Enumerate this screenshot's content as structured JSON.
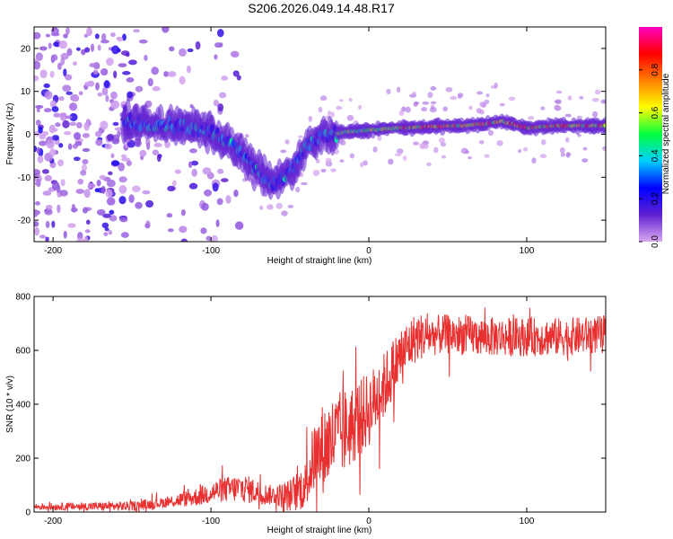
{
  "title": "S206.2026.049.14.48.R17",
  "chart_data": [
    {
      "type": "heatmap",
      "xlabel": "Height of straight line (km)",
      "ylabel": "Frequency (Hz)",
      "xlim": [
        -212,
        150
      ],
      "ylim": [
        -25,
        25
      ],
      "xticks": [
        -200,
        -100,
        0,
        100
      ],
      "yticks": [
        -20,
        -10,
        0,
        10,
        20
      ],
      "colorbar": {
        "label": "Normalized spectral amplitude",
        "range": [
          0,
          1
        ],
        "ticks": [
          0.0,
          0.2,
          0.4,
          0.6,
          0.8
        ],
        "tick_labels": [
          "0.0",
          "0.2",
          "0.4",
          "0.6",
          "0.8"
        ],
        "stops": [
          "#d8a8f0",
          "#6020d0",
          "#0000ff",
          "#00d0ff",
          "#00ff40",
          "#ffff00",
          "#ff8000",
          "#ff0000",
          "#ff00c0"
        ]
      },
      "ridge": [
        {
          "x": -155,
          "f": 3.0
        },
        {
          "x": -140,
          "f": 2.5
        },
        {
          "x": -125,
          "f": 2.0
        },
        {
          "x": -110,
          "f": 1.5
        },
        {
          "x": -100,
          "f": 0.5
        },
        {
          "x": -90,
          "f": -1.5
        },
        {
          "x": -80,
          "f": -5.0
        },
        {
          "x": -72,
          "f": -8.0
        },
        {
          "x": -60,
          "f": -11.5
        },
        {
          "x": -50,
          "f": -9.0
        },
        {
          "x": -40,
          "f": -3.0
        },
        {
          "x": -30,
          "f": -0.5
        },
        {
          "x": -15,
          "f": 0.5
        },
        {
          "x": 0,
          "f": 1.0
        },
        {
          "x": 20,
          "f": 1.5
        },
        {
          "x": 40,
          "f": 1.8
        },
        {
          "x": 60,
          "f": 2.0
        },
        {
          "x": 75,
          "f": 2.5
        },
        {
          "x": 85,
          "f": 3.0
        },
        {
          "x": 100,
          "f": 1.5
        },
        {
          "x": 120,
          "f": 2.0
        },
        {
          "x": 150,
          "f": 2.0
        }
      ]
    },
    {
      "type": "line",
      "xlabel": "Height of straight line (km)",
      "ylabel": "SNR (10 * v/v)",
      "xlim": [
        -212,
        150
      ],
      "ylim": [
        0,
        800
      ],
      "xticks": [
        -200,
        -100,
        0,
        100
      ],
      "yticks": [
        0,
        200,
        400,
        600,
        800
      ],
      "color": "#e83030",
      "trend": [
        {
          "x": -212,
          "y": 20
        },
        {
          "x": -150,
          "y": 22
        },
        {
          "x": -130,
          "y": 35
        },
        {
          "x": -110,
          "y": 55
        },
        {
          "x": -95,
          "y": 80
        },
        {
          "x": -80,
          "y": 90
        },
        {
          "x": -65,
          "y": 65
        },
        {
          "x": -50,
          "y": 60
        },
        {
          "x": -40,
          "y": 100
        },
        {
          "x": -35,
          "y": 200
        },
        {
          "x": -25,
          "y": 260
        },
        {
          "x": -15,
          "y": 300
        },
        {
          "x": 0,
          "y": 380
        },
        {
          "x": 10,
          "y": 470
        },
        {
          "x": 20,
          "y": 580
        },
        {
          "x": 30,
          "y": 650
        },
        {
          "x": 50,
          "y": 660
        },
        {
          "x": 75,
          "y": 650
        },
        {
          "x": 100,
          "y": 650
        },
        {
          "x": 125,
          "y": 650
        },
        {
          "x": 150,
          "y": 660
        }
      ],
      "spread": [
        {
          "x": -212,
          "y": 12
        },
        {
          "x": -130,
          "y": 20
        },
        {
          "x": -95,
          "y": 45
        },
        {
          "x": -80,
          "y": 55
        },
        {
          "x": -60,
          "y": 35
        },
        {
          "x": -40,
          "y": 90
        },
        {
          "x": -30,
          "y": 170
        },
        {
          "x": -15,
          "y": 160
        },
        {
          "x": 0,
          "y": 140
        },
        {
          "x": 20,
          "y": 110
        },
        {
          "x": 40,
          "y": 75
        },
        {
          "x": 150,
          "y": 70
        }
      ]
    }
  ]
}
